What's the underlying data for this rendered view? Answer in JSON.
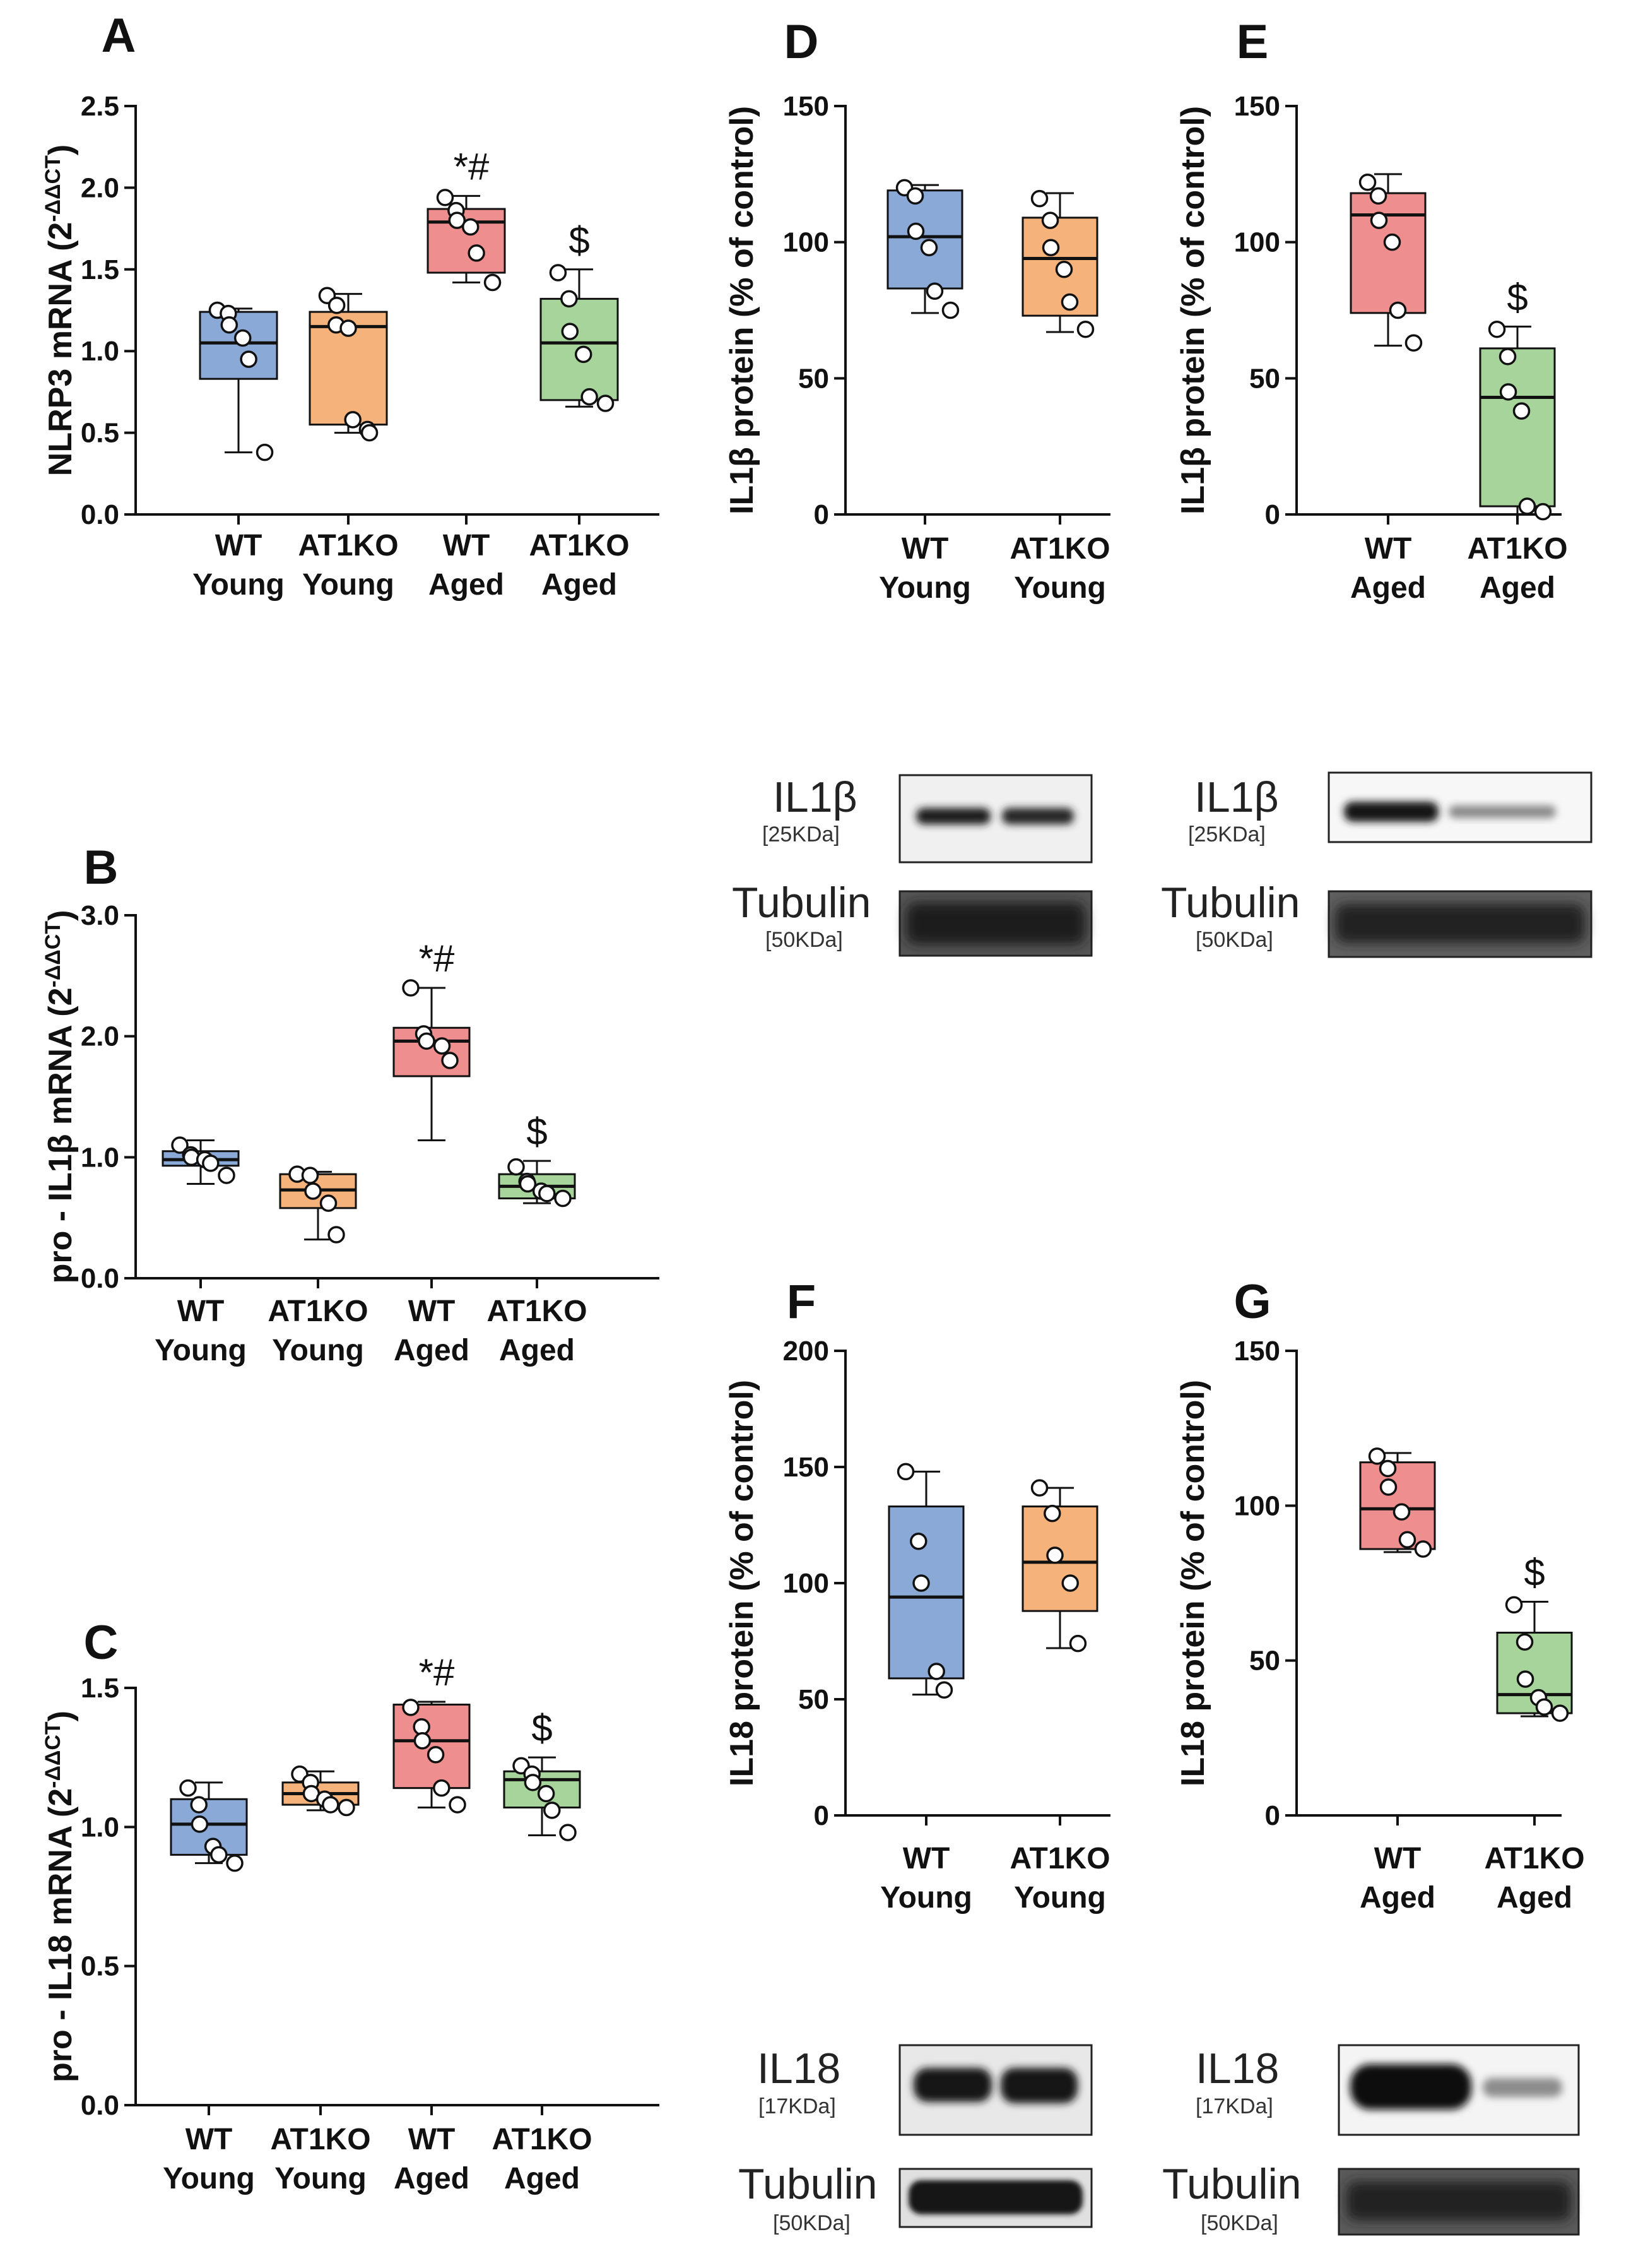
{
  "chart_data": [
    {
      "panel": "A",
      "type": "box",
      "ylabel": "NLRP3 mRNA (2",
      "ylabel_sup": "-ΔΔCT",
      "ylabel_end": ")",
      "ylim": [
        0,
        2.5
      ],
      "yticks": [
        "0.0",
        "0.5",
        "1.0",
        "1.5",
        "2.0",
        "2.5"
      ],
      "tick_values": [
        0,
        0.5,
        1.0,
        1.5,
        2.0,
        2.5
      ],
      "categories": [
        [
          "WT",
          "Young"
        ],
        [
          "AT1KO",
          "Young"
        ],
        [
          "WT",
          "Aged"
        ],
        [
          "AT1KO",
          "Aged"
        ]
      ],
      "boxes": [
        {
          "color": "#8aa9d6",
          "min": 0.38,
          "q1": 0.83,
          "median": 1.05,
          "q3": 1.24,
          "max": 1.26,
          "points": [
            1.25,
            1.23,
            1.16,
            1.08,
            0.95,
            0.38
          ],
          "label": ""
        },
        {
          "color": "#f5b27a",
          "min": 0.5,
          "q1": 0.55,
          "median": 1.15,
          "q3": 1.24,
          "max": 1.35,
          "points": [
            1.34,
            1.28,
            1.16,
            1.14,
            0.58,
            0.52,
            0.5
          ],
          "label": ""
        },
        {
          "color": "#ef8e8e",
          "min": 1.42,
          "q1": 1.48,
          "median": 1.79,
          "q3": 1.87,
          "max": 1.95,
          "points": [
            1.94,
            1.86,
            1.8,
            1.76,
            1.6,
            1.42
          ],
          "label": "*#"
        },
        {
          "color": "#a6d49a",
          "min": 0.66,
          "q1": 0.7,
          "median": 1.05,
          "q3": 1.32,
          "max": 1.5,
          "points": [
            1.48,
            1.32,
            1.12,
            0.98,
            0.72,
            0.68
          ],
          "label": "$"
        }
      ]
    },
    {
      "panel": "B",
      "type": "box",
      "ylabel": "pro - IL1β mRNA (2",
      "ylabel_sup": "-ΔΔCT",
      "ylabel_end": ")",
      "ylim": [
        0,
        3.0
      ],
      "yticks": [
        "0.0",
        "1.0",
        "2.0",
        "3.0"
      ],
      "tick_values": [
        0,
        1.0,
        2.0,
        3.0
      ],
      "categories": [
        [
          "WT",
          "Young"
        ],
        [
          "AT1KO",
          "Young"
        ],
        [
          "WT",
          "Aged"
        ],
        [
          "AT1KO",
          "Aged"
        ]
      ],
      "boxes": [
        {
          "color": "#8aa9d6",
          "min": 0.78,
          "q1": 0.93,
          "median": 0.98,
          "q3": 1.05,
          "max": 1.14,
          "points": [
            1.1,
            1.02,
            1.0,
            0.98,
            0.95,
            0.85
          ],
          "label": ""
        },
        {
          "color": "#f5b27a",
          "min": 0.32,
          "q1": 0.58,
          "median": 0.73,
          "q3": 0.86,
          "max": 0.88,
          "points": [
            0.86,
            0.85,
            0.72,
            0.62,
            0.36
          ],
          "label": ""
        },
        {
          "color": "#ef8e8e",
          "min": 1.14,
          "q1": 1.67,
          "median": 1.96,
          "q3": 2.07,
          "max": 2.4,
          "points": [
            2.4,
            2.02,
            1.96,
            1.92,
            1.8
          ],
          "label": "*#"
        },
        {
          "color": "#a6d49a",
          "min": 0.62,
          "q1": 0.66,
          "median": 0.76,
          "q3": 0.86,
          "max": 0.97,
          "points": [
            0.92,
            0.8,
            0.78,
            0.72,
            0.7,
            0.66
          ],
          "label": "$"
        }
      ]
    },
    {
      "panel": "C",
      "type": "box",
      "ylabel": "pro - IL18 mRNA (2",
      "ylabel_sup": "-ΔΔCT",
      "ylabel_end": ")",
      "ylim": [
        0,
        1.5
      ],
      "yticks": [
        "0.0",
        "0.5",
        "1.0",
        "1.5"
      ],
      "tick_values": [
        0,
        0.5,
        1.0,
        1.5
      ],
      "categories": [
        [
          "WT",
          "Young"
        ],
        [
          "AT1KO",
          "Young"
        ],
        [
          "WT",
          "Aged"
        ],
        [
          "AT1KO",
          "Aged"
        ]
      ],
      "boxes": [
        {
          "color": "#8aa9d6",
          "min": 0.87,
          "q1": 0.9,
          "median": 1.01,
          "q3": 1.1,
          "max": 1.16,
          "points": [
            1.14,
            1.08,
            1.01,
            0.93,
            0.9,
            0.87
          ],
          "label": ""
        },
        {
          "color": "#f5b27a",
          "min": 1.06,
          "q1": 1.08,
          "median": 1.12,
          "q3": 1.16,
          "max": 1.2,
          "points": [
            1.19,
            1.16,
            1.12,
            1.1,
            1.08,
            1.07
          ],
          "label": ""
        },
        {
          "color": "#ef8e8e",
          "min": 1.07,
          "q1": 1.14,
          "median": 1.31,
          "q3": 1.44,
          "max": 1.45,
          "points": [
            1.43,
            1.36,
            1.31,
            1.26,
            1.14,
            1.08
          ],
          "label": "*#"
        },
        {
          "color": "#a6d49a",
          "min": 0.97,
          "q1": 1.07,
          "median": 1.17,
          "q3": 1.2,
          "max": 1.25,
          "points": [
            1.22,
            1.19,
            1.16,
            1.12,
            1.06,
            0.98
          ],
          "label": "$"
        }
      ]
    },
    {
      "panel": "D",
      "type": "box",
      "ylabel": "IL1β protein (% of control)",
      "ylim": [
        0,
        150
      ],
      "yticks": [
        "0",
        "50",
        "100",
        "150"
      ],
      "tick_values": [
        0,
        50,
        100,
        150
      ],
      "categories": [
        [
          "WT",
          "Young"
        ],
        [
          "AT1KO",
          "Young"
        ]
      ],
      "boxes": [
        {
          "color": "#8aa9d6",
          "min": 74,
          "q1": 83,
          "median": 102,
          "q3": 119,
          "max": 121,
          "points": [
            120,
            117,
            104,
            98,
            82,
            75
          ],
          "label": ""
        },
        {
          "color": "#f5b27a",
          "min": 67,
          "q1": 73,
          "median": 94,
          "q3": 109,
          "max": 118,
          "points": [
            116,
            108,
            98,
            90,
            78,
            68
          ],
          "label": ""
        }
      ]
    },
    {
      "panel": "E",
      "type": "box",
      "ylabel": "IL1β protein (% of control)",
      "ylim": [
        0,
        150
      ],
      "yticks": [
        "0",
        "50",
        "100",
        "150"
      ],
      "tick_values": [
        0,
        50,
        100,
        150
      ],
      "categories": [
        [
          "WT",
          "Aged"
        ],
        [
          "AT1KO",
          "Aged"
        ]
      ],
      "boxes": [
        {
          "color": "#ef8e8e",
          "min": 62,
          "q1": 74,
          "median": 110,
          "q3": 118,
          "max": 125,
          "points": [
            122,
            117,
            108,
            100,
            75,
            63
          ],
          "label": ""
        },
        {
          "color": "#a6d49a",
          "min": 0,
          "q1": 3,
          "median": 43,
          "q3": 61,
          "max": 69,
          "points": [
            68,
            58,
            45,
            38,
            3,
            1
          ],
          "label": "$"
        }
      ]
    },
    {
      "panel": "F",
      "type": "box",
      "ylabel": "IL18 protein (% of control)",
      "ylim": [
        0,
        200
      ],
      "yticks": [
        "0",
        "50",
        "100",
        "150",
        "200"
      ],
      "tick_values": [
        0,
        50,
        100,
        150,
        200
      ],
      "categories": [
        [
          "WT",
          "Young"
        ],
        [
          "AT1KO",
          "Young"
        ]
      ],
      "boxes": [
        {
          "color": "#8aa9d6",
          "min": 52,
          "q1": 59,
          "median": 94,
          "q3": 133,
          "max": 148,
          "points": [
            148,
            118,
            100,
            62,
            54
          ],
          "label": ""
        },
        {
          "color": "#f5b27a",
          "min": 72,
          "q1": 88,
          "median": 109,
          "q3": 133,
          "max": 141,
          "points": [
            141,
            130,
            112,
            100,
            74
          ],
          "label": ""
        }
      ]
    },
    {
      "panel": "G",
      "type": "box",
      "ylabel": "IL18 protein (% of control)",
      "ylim": [
        0,
        150
      ],
      "yticks": [
        "0",
        "50",
        "100",
        "150"
      ],
      "tick_values": [
        0,
        50,
        100,
        150
      ],
      "categories": [
        [
          "WT",
          "Aged"
        ],
        [
          "AT1KO",
          "Aged"
        ]
      ],
      "boxes": [
        {
          "color": "#ef8e8e",
          "min": 85,
          "q1": 86,
          "median": 99,
          "q3": 114,
          "max": 117,
          "points": [
            116,
            112,
            106,
            98,
            89,
            86
          ],
          "label": ""
        },
        {
          "color": "#a6d49a",
          "min": 32,
          "q1": 33,
          "median": 39,
          "q3": 59,
          "max": 69,
          "points": [
            68,
            56,
            44,
            38,
            35,
            33
          ],
          "label": "$"
        }
      ]
    }
  ],
  "blots": [
    {
      "id": "il1b-young",
      "target": "IL1β",
      "target_kda": "[25KDa]",
      "control": "Tubulin",
      "control_kda": "[50KDa]"
    },
    {
      "id": "il1b-aged",
      "target": "IL1β",
      "target_kda": "[25KDa]",
      "control": "Tubulin",
      "control_kda": "[50KDa]"
    },
    {
      "id": "il18-young",
      "target": "IL18",
      "target_kda": "[17KDa]",
      "control": "Tubulin",
      "control_kda": "[50KDa]"
    },
    {
      "id": "il18-aged",
      "target": "IL18",
      "target_kda": "[17KDa]",
      "control": "Tubulin",
      "control_kda": "[50KDa]"
    }
  ]
}
